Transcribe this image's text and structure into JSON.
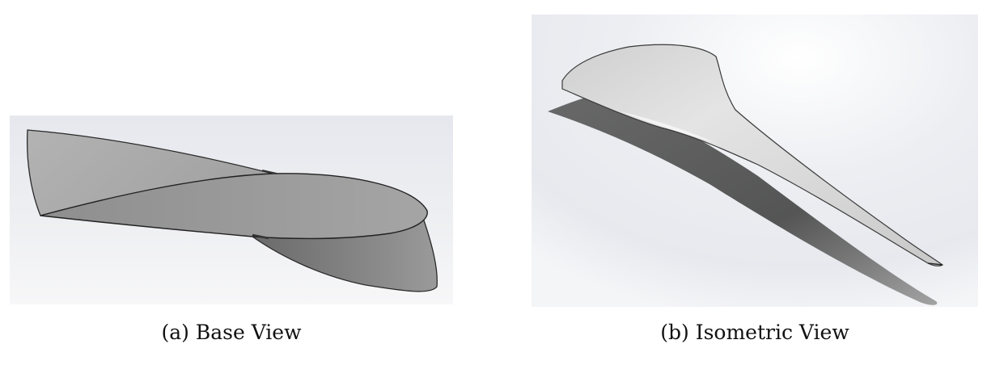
{
  "figure": {
    "panels": [
      {
        "id": "a",
        "caption": "(a) Base View",
        "background_color": "#e9ebef",
        "surface_light": "#b9b9b9",
        "surface_mid": "#999999",
        "surface_dark": "#7a7a7a"
      },
      {
        "id": "b",
        "caption": "(b) Isometric View",
        "background_color": "#eef0f3",
        "surface_light": "#d9d9d9",
        "shadow_color": "#555555"
      }
    ]
  }
}
